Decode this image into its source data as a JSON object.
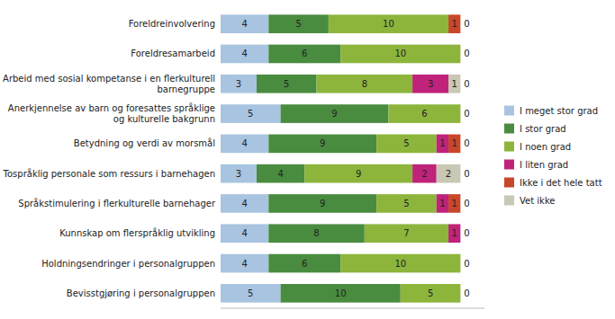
{
  "chart_data": {
    "type": "bar",
    "orientation": "horizontal",
    "stacked": true,
    "data_labels": true,
    "tick_labels": "y",
    "legend": "right",
    "grid": false,
    "categories": [
      "Foreldreinvolvering",
      "Foreldresamarbeid",
      "Arbeid med sosial kompetanse i en flerkulturell\nbarnegruppe",
      "Anerkjennelse av barn og foresattes språklige\nog kulturelle bakgrunn",
      "Betydning og verdi av morsmål",
      "Tospråklig personale som ressurs i barnehagen",
      "Språkstimulering i flerkulturelle barnehager",
      "Kunnskap om flerspråklig utvikling",
      "Holdningsendringer i personalgruppen",
      "Bevisstgjøring i personalgruppen"
    ],
    "series": [
      {
        "name": "I meget stor grad",
        "color": "#a8c4e0",
        "values": [
          4,
          4,
          3,
          5,
          4,
          3,
          4,
          4,
          4,
          5
        ]
      },
      {
        "name": "I stor grad",
        "color": "#4a8c3f",
        "values": [
          5,
          6,
          5,
          9,
          9,
          4,
          9,
          8,
          6,
          10
        ]
      },
      {
        "name": "I noen grad",
        "color": "#8db53c",
        "values": [
          10,
          10,
          8,
          6,
          5,
          9,
          5,
          7,
          10,
          5
        ]
      },
      {
        "name": "I liten grad",
        "color": "#c0237a",
        "values": [
          0,
          0,
          3,
          0,
          1,
          2,
          1,
          1,
          0,
          0
        ]
      },
      {
        "name": "Ikke i det hele tatt",
        "color": "#c8472a",
        "values": [
          1,
          0,
          0,
          0,
          1,
          0,
          1,
          0,
          0,
          0
        ]
      },
      {
        "name": "Vet ikke",
        "color": "#c8c8b4",
        "values": [
          0,
          0,
          1,
          0,
          0,
          2,
          0,
          0,
          0,
          0
        ]
      }
    ],
    "annotations": [
      "0",
      "0",
      "0",
      "0",
      "0",
      "0",
      "0",
      "0",
      "0",
      "0"
    ],
    "xlim": [
      0,
      22
    ]
  }
}
